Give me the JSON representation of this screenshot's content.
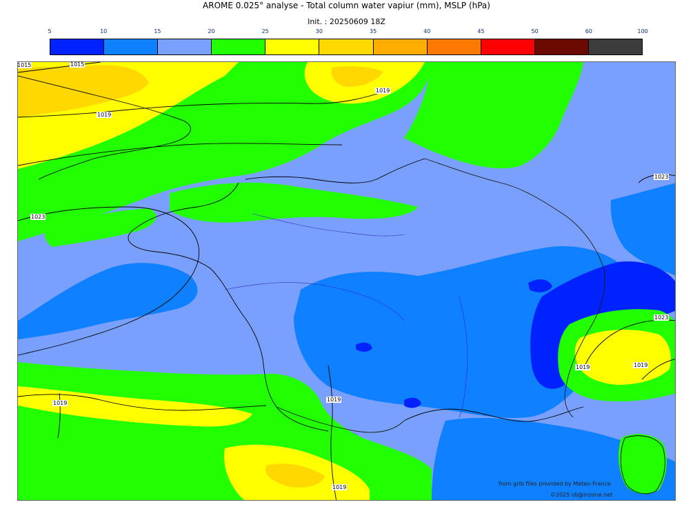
{
  "header": {
    "title": "AROME 0.025° analyse - Total column water vapiur (mm), MSLP (hPa)",
    "init": "Init. : 20250609 18Z"
  },
  "colorbar": {
    "ticks": [
      "5",
      "10",
      "15",
      "20",
      "25",
      "30",
      "35",
      "40",
      "45",
      "50",
      "60",
      "100"
    ],
    "colors": [
      "#0022ff",
      "#0f80ff",
      "#7aa0ff",
      "#22ff00",
      "#ffff00",
      "#ffd800",
      "#ffae00",
      "#ff7800",
      "#ff0000",
      "#6b0a00",
      "#3c3c3c"
    ]
  },
  "isobars": {
    "labels": [
      "1015",
      "1019",
      "1019",
      "1023",
      "1023",
      "1023",
      "1019",
      "1019",
      "1019",
      "1019",
      "1015",
      "1019"
    ]
  },
  "credits": {
    "source": "from grib files provided by Meteo-France",
    "copyright": "©2025 sb@inzone.net"
  },
  "field_colors": {
    "deep_blue": "#0022ff",
    "mid_blue": "#0f80ff",
    "light_blue": "#7aa0ff",
    "green": "#22ff00",
    "yellow": "#ffff00",
    "gold": "#ffd800",
    "coast_line": "#000000",
    "border_line": "#1a1a1a",
    "river_line": "#2b2bcc"
  }
}
